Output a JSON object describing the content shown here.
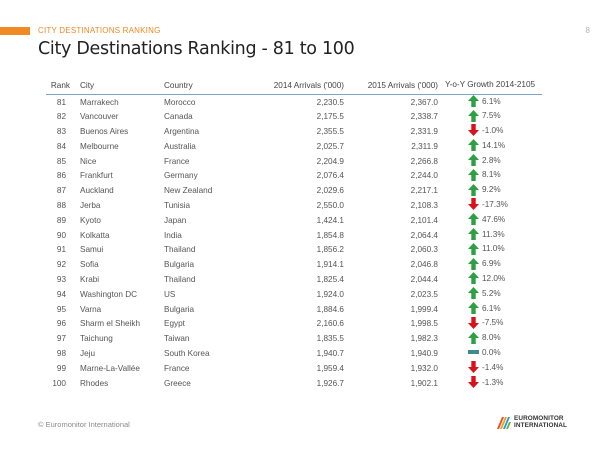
{
  "header": {
    "section_label": "CITY DESTINATIONS RANKING",
    "page_number": "8",
    "title": "City Destinations Ranking - 81 to 100"
  },
  "colors": {
    "accent": "#f08a24",
    "arrow_up": "#2ea043",
    "arrow_down": "#d9111a",
    "neutral": "#3d8a8f",
    "header_rule": "#7ea3c7"
  },
  "table": {
    "columns": {
      "rank": "Rank",
      "city": "City",
      "country": "Country",
      "arrivals_2014": "2014 Arrivals ('000)",
      "arrivals_2015": "2015 Arrivals ('000)",
      "growth": "Y-o-Y Growth 2014-2105"
    },
    "rows": [
      {
        "rank": "81",
        "city": "Marrakech",
        "country": "Morocco",
        "a2014": "2,230.5",
        "a2015": "2,367.0",
        "growth": "6.1%",
        "trend": "up"
      },
      {
        "rank": "82",
        "city": "Vancouver",
        "country": "Canada",
        "a2014": "2,175.5",
        "a2015": "2,338.7",
        "growth": "7.5%",
        "trend": "up"
      },
      {
        "rank": "83",
        "city": "Buenos Aires",
        "country": "Argentina",
        "a2014": "2,355.5",
        "a2015": "2,331.9",
        "growth": "-1.0%",
        "trend": "down"
      },
      {
        "rank": "84",
        "city": "Melbourne",
        "country": "Australia",
        "a2014": "2,025.7",
        "a2015": "2,311.9",
        "growth": "14.1%",
        "trend": "up"
      },
      {
        "rank": "85",
        "city": "Nice",
        "country": "France",
        "a2014": "2,204.9",
        "a2015": "2,266.8",
        "growth": "2.8%",
        "trend": "up"
      },
      {
        "rank": "86",
        "city": "Frankfurt",
        "country": "Germany",
        "a2014": "2,076.4",
        "a2015": "2,244.0",
        "growth": "8.1%",
        "trend": "up"
      },
      {
        "rank": "87",
        "city": "Auckland",
        "country": "New Zealand",
        "a2014": "2,029.6",
        "a2015": "2,217.1",
        "growth": "9.2%",
        "trend": "up"
      },
      {
        "rank": "88",
        "city": "Jerba",
        "country": "Tunisia",
        "a2014": "2,550.0",
        "a2015": "2,108.3",
        "growth": "-17.3%",
        "trend": "down"
      },
      {
        "rank": "89",
        "city": "Kyoto",
        "country": "Japan",
        "a2014": "1,424.1",
        "a2015": "2,101.4",
        "growth": "47.6%",
        "trend": "up"
      },
      {
        "rank": "90",
        "city": "Kolkatta",
        "country": "India",
        "a2014": "1,854.8",
        "a2015": "2,064.4",
        "growth": "11.3%",
        "trend": "up"
      },
      {
        "rank": "91",
        "city": "Samui",
        "country": "Thailand",
        "a2014": "1,856.2",
        "a2015": "2,060.3",
        "growth": "11.0%",
        "trend": "up"
      },
      {
        "rank": "92",
        "city": "Sofia",
        "country": "Bulgaria",
        "a2014": "1,914.1",
        "a2015": "2,046.8",
        "growth": "6.9%",
        "trend": "up"
      },
      {
        "rank": "93",
        "city": "Krabi",
        "country": "Thailand",
        "a2014": "1,825.4",
        "a2015": "2,044.4",
        "growth": "12.0%",
        "trend": "up"
      },
      {
        "rank": "94",
        "city": "Washington DC",
        "country": "US",
        "a2014": "1,924.0",
        "a2015": "2,023.5",
        "growth": "5.2%",
        "trend": "up"
      },
      {
        "rank": "95",
        "city": "Varna",
        "country": "Bulgaria",
        "a2014": "1,884.6",
        "a2015": "1,999.4",
        "growth": "6.1%",
        "trend": "up"
      },
      {
        "rank": "96",
        "city": "Sharm el Sheikh",
        "country": "Egypt",
        "a2014": "2,160.6",
        "a2015": "1,998.5",
        "growth": "-7.5%",
        "trend": "down"
      },
      {
        "rank": "97",
        "city": "Taichung",
        "country": "Taiwan",
        "a2014": "1,835.5",
        "a2015": "1,982.3",
        "growth": "8.0%",
        "trend": "up"
      },
      {
        "rank": "98",
        "city": "Jeju",
        "country": "South Korea",
        "a2014": "1,940.7",
        "a2015": "1,940.9",
        "growth": "0.0%",
        "trend": "flat"
      },
      {
        "rank": "99",
        "city": "Marne-La-Vallée",
        "country": "France",
        "a2014": "1,959.4",
        "a2015": "1,932.0",
        "growth": "-1.4%",
        "trend": "down"
      },
      {
        "rank": "100",
        "city": "Rhodes",
        "country": "Greece",
        "a2014": "1,926.7",
        "a2015": "1,902.1",
        "growth": "-1.3%",
        "trend": "down"
      }
    ]
  },
  "footer": {
    "copyright": "© Euromonitor International",
    "logo_line1": "EUROMONITOR",
    "logo_line2": "INTERNATIONAL"
  }
}
